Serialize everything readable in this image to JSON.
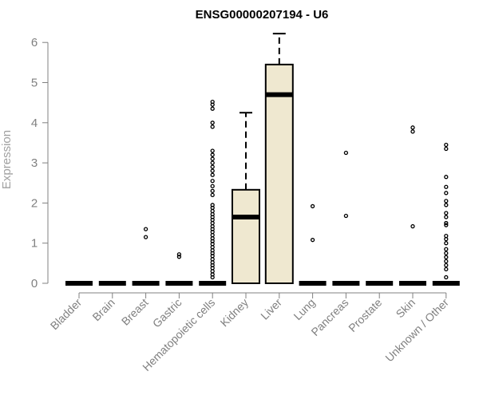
{
  "chart_data": {
    "type": "box",
    "title": "ENSG00000207194 - U6",
    "xlabel": "",
    "ylabel": "Expression",
    "ylim": [
      0,
      6.2
    ],
    "yticks": [
      0,
      1,
      2,
      3,
      4,
      5,
      6
    ],
    "box_fill": "#efe8d0",
    "grid": false,
    "categories": [
      "Bladder",
      "Brain",
      "Breast",
      "Gastric",
      "Hematopoietic cells",
      "Kidney",
      "Liver",
      "Lung",
      "Pancreas",
      "Prostate",
      "Skin",
      "Unknown / Other"
    ],
    "boxes": [
      {
        "category": "Bladder",
        "min": 0,
        "q1": 0,
        "median": 0,
        "q3": 0,
        "max": 0,
        "outliers": []
      },
      {
        "category": "Brain",
        "min": 0,
        "q1": 0,
        "median": 0,
        "q3": 0,
        "max": 0,
        "outliers": []
      },
      {
        "category": "Breast",
        "min": 0,
        "q1": 0,
        "median": 0,
        "q3": 0,
        "max": 0,
        "outliers": [
          1.15,
          1.35
        ]
      },
      {
        "category": "Gastric",
        "min": 0,
        "q1": 0,
        "median": 0,
        "q3": 0,
        "max": 0,
        "outliers": [
          0.66,
          0.72
        ]
      },
      {
        "category": "Hematopoietic cells",
        "min": 0,
        "q1": 0,
        "median": 0,
        "q3": 0,
        "max": 0,
        "outliers": [
          0.15,
          0.22,
          0.3,
          0.38,
          0.45,
          0.52,
          0.6,
          0.68,
          0.75,
          0.82,
          0.9,
          0.98,
          1.05,
          1.12,
          1.2,
          1.28,
          1.35,
          1.42,
          1.5,
          1.58,
          1.65,
          1.72,
          1.8,
          1.88,
          1.95,
          2.2,
          2.3,
          2.42,
          2.55,
          2.7,
          2.8,
          2.9,
          3.0,
          3.1,
          3.2,
          3.3,
          3.9,
          4.0,
          4.35,
          4.45,
          4.52
        ]
      },
      {
        "category": "Kidney",
        "min": 0,
        "q1": 0,
        "median": 1.65,
        "q3": 2.33,
        "max": 4.25,
        "outliers": []
      },
      {
        "category": "Liver",
        "min": 0,
        "q1": 0,
        "median": 4.7,
        "q3": 5.45,
        "max": 6.22,
        "outliers": []
      },
      {
        "category": "Lung",
        "min": 0,
        "q1": 0,
        "median": 0,
        "q3": 0,
        "max": 0,
        "outliers": [
          1.08,
          1.92
        ]
      },
      {
        "category": "Pancreas",
        "min": 0,
        "q1": 0,
        "median": 0,
        "q3": 0,
        "max": 0,
        "outliers": [
          1.68,
          3.25
        ]
      },
      {
        "category": "Prostate",
        "min": 0,
        "q1": 0,
        "median": 0,
        "q3": 0,
        "max": 0,
        "outliers": []
      },
      {
        "category": "Skin",
        "min": 0,
        "q1": 0,
        "median": 0,
        "q3": 0,
        "max": 0,
        "outliers": [
          1.42,
          3.78,
          3.88
        ]
      },
      {
        "category": "Unknown / Other",
        "min": 0,
        "q1": 0,
        "median": 0,
        "q3": 0,
        "max": 0,
        "outliers": [
          0.15,
          0.35,
          0.45,
          0.55,
          0.65,
          0.75,
          0.85,
          1.0,
          1.1,
          1.18,
          1.45,
          1.5,
          1.65,
          1.75,
          1.95,
          2.05,
          2.25,
          2.4,
          2.65,
          3.35,
          3.45
        ]
      }
    ]
  }
}
